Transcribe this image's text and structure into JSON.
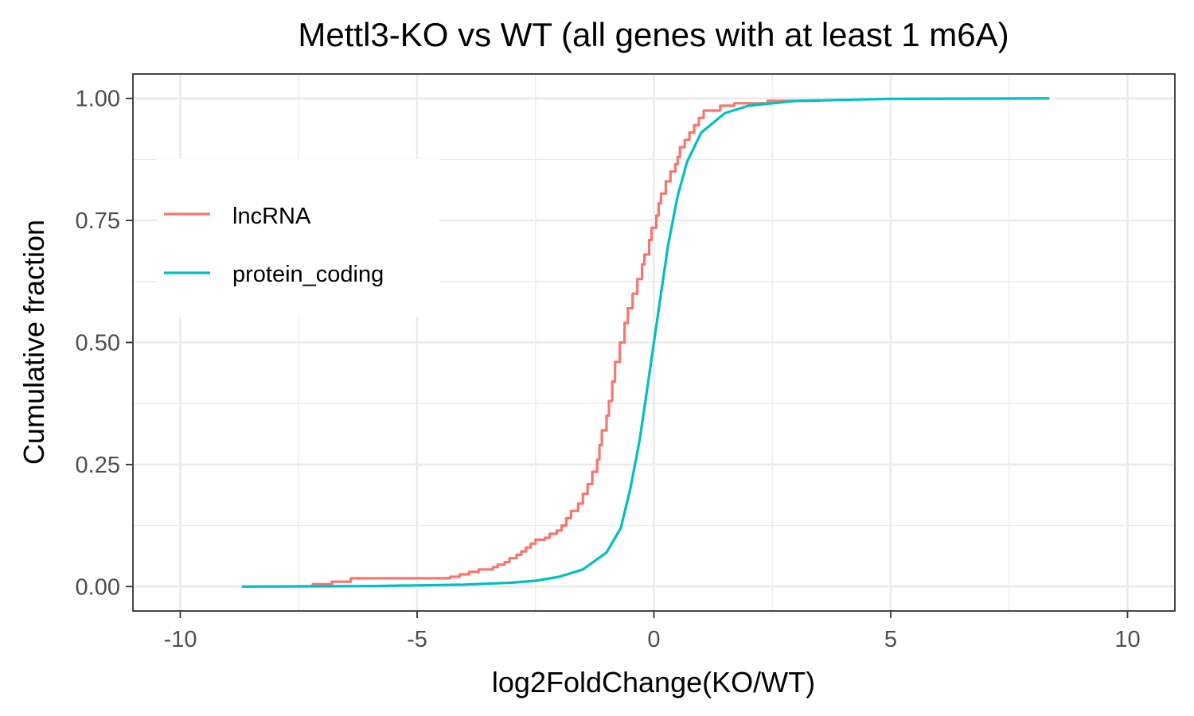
{
  "chart_data": {
    "type": "line",
    "title": "Mettl3-KO vs WT (all genes with at least 1 m6A)",
    "xlabel": "log2FoldChange(KO/WT)",
    "ylabel": "Cumulative fraction",
    "xlim": [
      -11,
      11
    ],
    "ylim": [
      -0.05,
      1.05
    ],
    "x_ticks": [
      -10,
      -5,
      0,
      5,
      10
    ],
    "x_tick_labels": [
      "-10",
      "-5",
      "0",
      "5",
      "10"
    ],
    "y_ticks": [
      0,
      0.25,
      0.5,
      0.75,
      1.0
    ],
    "y_tick_labels": [
      "0.00",
      "0.25",
      "0.50",
      "0.75",
      "1.00"
    ],
    "grid": true,
    "legend_position": "left, upper-middle inside panel",
    "series": [
      {
        "name": "lncRNA",
        "color": "#F8766D",
        "step": true,
        "points": [
          [
            -7.2,
            0.0
          ],
          [
            -7.2,
            0.005
          ],
          [
            -6.8,
            0.005
          ],
          [
            -6.8,
            0.01
          ],
          [
            -6.4,
            0.01
          ],
          [
            -6.4,
            0.017
          ],
          [
            -4.4,
            0.017
          ],
          [
            -4.3,
            0.02
          ],
          [
            -4.1,
            0.025
          ],
          [
            -3.9,
            0.03
          ],
          [
            -3.7,
            0.035
          ],
          [
            -3.4,
            0.04
          ],
          [
            -3.3,
            0.045
          ],
          [
            -3.15,
            0.05
          ],
          [
            -3.05,
            0.058
          ],
          [
            -2.9,
            0.065
          ],
          [
            -2.8,
            0.072
          ],
          [
            -2.7,
            0.08
          ],
          [
            -2.6,
            0.088
          ],
          [
            -2.5,
            0.096
          ],
          [
            -2.3,
            0.1
          ],
          [
            -2.2,
            0.108
          ],
          [
            -2.05,
            0.115
          ],
          [
            -1.95,
            0.125
          ],
          [
            -1.85,
            0.14
          ],
          [
            -1.75,
            0.155
          ],
          [
            -1.6,
            0.17
          ],
          [
            -1.5,
            0.19
          ],
          [
            -1.4,
            0.21
          ],
          [
            -1.3,
            0.235
          ],
          [
            -1.2,
            0.26
          ],
          [
            -1.15,
            0.29
          ],
          [
            -1.1,
            0.32
          ],
          [
            -1.0,
            0.35
          ],
          [
            -0.95,
            0.38
          ],
          [
            -0.88,
            0.42
          ],
          [
            -0.82,
            0.46
          ],
          [
            -0.72,
            0.5
          ],
          [
            -0.62,
            0.54
          ],
          [
            -0.55,
            0.57
          ],
          [
            -0.45,
            0.6
          ],
          [
            -0.35,
            0.63
          ],
          [
            -0.25,
            0.66
          ],
          [
            -0.2,
            0.68
          ],
          [
            -0.1,
            0.71
          ],
          [
            -0.05,
            0.735
          ],
          [
            0.05,
            0.76
          ],
          [
            0.1,
            0.785
          ],
          [
            0.15,
            0.805
          ],
          [
            0.25,
            0.83
          ],
          [
            0.35,
            0.85
          ],
          [
            0.45,
            0.865
          ],
          [
            0.5,
            0.88
          ],
          [
            0.55,
            0.9
          ],
          [
            0.65,
            0.915
          ],
          [
            0.75,
            0.93
          ],
          [
            0.85,
            0.945
          ],
          [
            0.95,
            0.96
          ],
          [
            1.05,
            0.975
          ],
          [
            1.4,
            0.985
          ],
          [
            1.7,
            0.99
          ],
          [
            2.4,
            0.995
          ],
          [
            3.5,
            0.995
          ]
        ]
      },
      {
        "name": "protein_coding",
        "color": "#00BFC4",
        "step": false,
        "points": [
          [
            -8.7,
            0.0
          ],
          [
            -6.0,
            0.001
          ],
          [
            -4.0,
            0.004
          ],
          [
            -3.0,
            0.008
          ],
          [
            -2.5,
            0.012
          ],
          [
            -2.0,
            0.02
          ],
          [
            -1.5,
            0.035
          ],
          [
            -1.0,
            0.07
          ],
          [
            -0.7,
            0.12
          ],
          [
            -0.5,
            0.2
          ],
          [
            -0.3,
            0.3
          ],
          [
            -0.15,
            0.4
          ],
          [
            0.0,
            0.5
          ],
          [
            0.15,
            0.6
          ],
          [
            0.3,
            0.7
          ],
          [
            0.5,
            0.8
          ],
          [
            0.7,
            0.87
          ],
          [
            1.0,
            0.93
          ],
          [
            1.5,
            0.97
          ],
          [
            2.0,
            0.985
          ],
          [
            3.0,
            0.995
          ],
          [
            5.0,
            0.999
          ],
          [
            8.35,
            1.0
          ]
        ]
      }
    ]
  }
}
